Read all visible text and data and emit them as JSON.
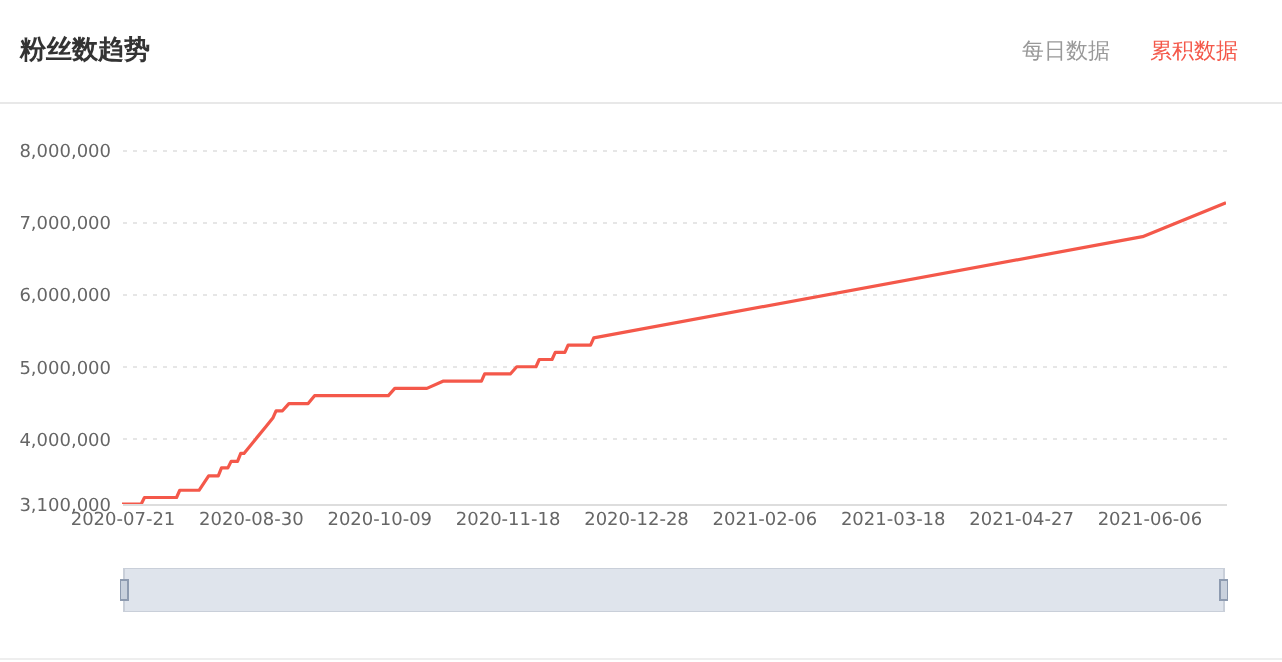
{
  "chart_data": {
    "type": "line",
    "title": "粉丝数趋势",
    "annotations": [
      "每日数据",
      "累积数据"
    ],
    "x": [
      "2020-07-21",
      "2020-07-27",
      "2020-07-28",
      "2020-08-07",
      "2020-08-08",
      "2020-08-14",
      "2020-08-17",
      "2020-08-20",
      "2020-08-21",
      "2020-08-23",
      "2020-08-24",
      "2020-08-26",
      "2020-08-27",
      "2020-08-28",
      "2020-09-04",
      "2020-09-06",
      "2020-09-07",
      "2020-09-09",
      "2020-09-11",
      "2020-09-17",
      "2020-09-19",
      "2020-10-12",
      "2020-10-14",
      "2020-10-24",
      "2020-10-29",
      "2020-11-10",
      "2020-11-11",
      "2020-11-19",
      "2020-11-21",
      "2020-11-27",
      "2020-11-28",
      "2020-12-02",
      "2020-12-03",
      "2020-12-06",
      "2020-12-07",
      "2020-12-14",
      "2020-12-15",
      "2021-06-04",
      "2021-06-30"
    ],
    "series": [
      {
        "color": "#f4584a",
        "values": [
          3100000,
          3100000,
          3190000,
          3190000,
          3290000,
          3290000,
          3490000,
          3490000,
          3600000,
          3600000,
          3690000,
          3690000,
          3800000,
          3800000,
          4180000,
          4290000,
          4390000,
          4390000,
          4490000,
          4490000,
          4600000,
          4600000,
          4700000,
          4700000,
          4800000,
          4800000,
          4900000,
          4900000,
          5000000,
          5000000,
          5100000,
          5100000,
          5200000,
          5200000,
          5300000,
          5300000,
          5400000,
          6800000,
          7270000
        ]
      }
    ],
    "xlim": [
      "2020-07-21",
      "2021-06-30"
    ],
    "xticks": [
      "2020-07-21",
      "2020-08-30",
      "2020-10-09",
      "2020-11-18",
      "2020-12-28",
      "2021-02-06",
      "2021-03-18",
      "2021-04-27",
      "2021-06-06"
    ],
    "ylim": [
      3100000,
      8000000
    ],
    "yticks": [
      {
        "value": 3100000,
        "label": "3,100,000"
      },
      {
        "value": 4000000,
        "label": "4,000,000"
      },
      {
        "value": 5000000,
        "label": "5,000,000"
      },
      {
        "value": 6000000,
        "label": "6,000,000"
      },
      {
        "value": 7000000,
        "label": "7,000,000"
      },
      {
        "value": 8000000,
        "label": "8,000,000"
      }
    ],
    "grid": "y"
  }
}
